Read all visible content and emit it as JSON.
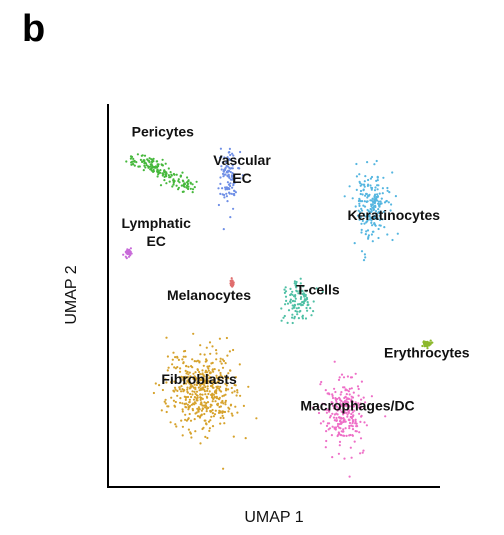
{
  "panel_letter": "b",
  "chart_data": {
    "type": "scatter",
    "title": "",
    "xlabel": "UMAP 1",
    "ylabel": "UMAP 2",
    "grid": false,
    "legend": "none",
    "axis_ticks": "hidden",
    "xlim": [
      0,
      10
    ],
    "ylim": [
      0,
      10
    ],
    "clusters": [
      {
        "name": "Pericytes",
        "color": "#46b83c",
        "center": [
          1.6,
          8.2
        ],
        "spread": [
          1.0,
          0.5
        ],
        "label_lines": [
          "Pericytes"
        ],
        "label_pos": [
          1.6,
          9.15
        ]
      },
      {
        "name": "Vascular EC",
        "color": "#6f8fe6",
        "center": [
          3.6,
          8.1
        ],
        "spread": [
          0.35,
          0.9
        ],
        "label_lines": [
          "Vascular",
          "EC"
        ],
        "label_pos": [
          4.0,
          8.4
        ]
      },
      {
        "name": "Lymphatic EC",
        "color": "#c86bd9",
        "center": [
          0.55,
          6.1
        ],
        "spread": [
          0.12,
          0.12
        ],
        "label_lines": [
          "Lymphatic",
          "EC"
        ],
        "label_pos": [
          1.4,
          6.75
        ]
      },
      {
        "name": "Keratinocytes",
        "color": "#55b6e0",
        "center": [
          7.9,
          7.3
        ],
        "spread": [
          0.6,
          1.0
        ],
        "label_lines": [
          "Keratinocytes"
        ],
        "label_pos": [
          8.6,
          6.95
        ]
      },
      {
        "name": "Melanocytes",
        "color": "#e06e6e",
        "center": [
          3.7,
          5.3
        ],
        "spread": [
          0.05,
          0.1
        ],
        "label_lines": [
          "Melanocytes"
        ],
        "label_pos": [
          3.0,
          4.85
        ]
      },
      {
        "name": "T-cells",
        "color": "#4fc0a5",
        "center": [
          5.7,
          4.8
        ],
        "spread": [
          0.55,
          0.6
        ],
        "label_lines": [
          "T-cells"
        ],
        "label_pos": [
          6.3,
          5.0
        ]
      },
      {
        "name": "Erythrocytes",
        "color": "#8cb82c",
        "center": [
          9.6,
          3.7
        ],
        "spread": [
          0.25,
          0.1
        ],
        "label_lines": [
          "Erythrocytes"
        ],
        "label_pos": [
          9.6,
          3.35
        ]
      },
      {
        "name": "Fibroblasts",
        "color": "#d6a22c",
        "center": [
          2.8,
          2.5
        ],
        "spread": [
          1.2,
          1.2
        ],
        "label_lines": [
          "Fibroblasts"
        ],
        "label_pos": [
          2.7,
          2.65
        ]
      },
      {
        "name": "Macrophages/DC",
        "color": "#ee6fc7",
        "center": [
          7.1,
          1.9
        ],
        "spread": [
          0.75,
          1.0
        ],
        "label_lines": [
          "Macrophages/DC"
        ],
        "label_pos": [
          7.5,
          1.95
        ]
      }
    ]
  }
}
